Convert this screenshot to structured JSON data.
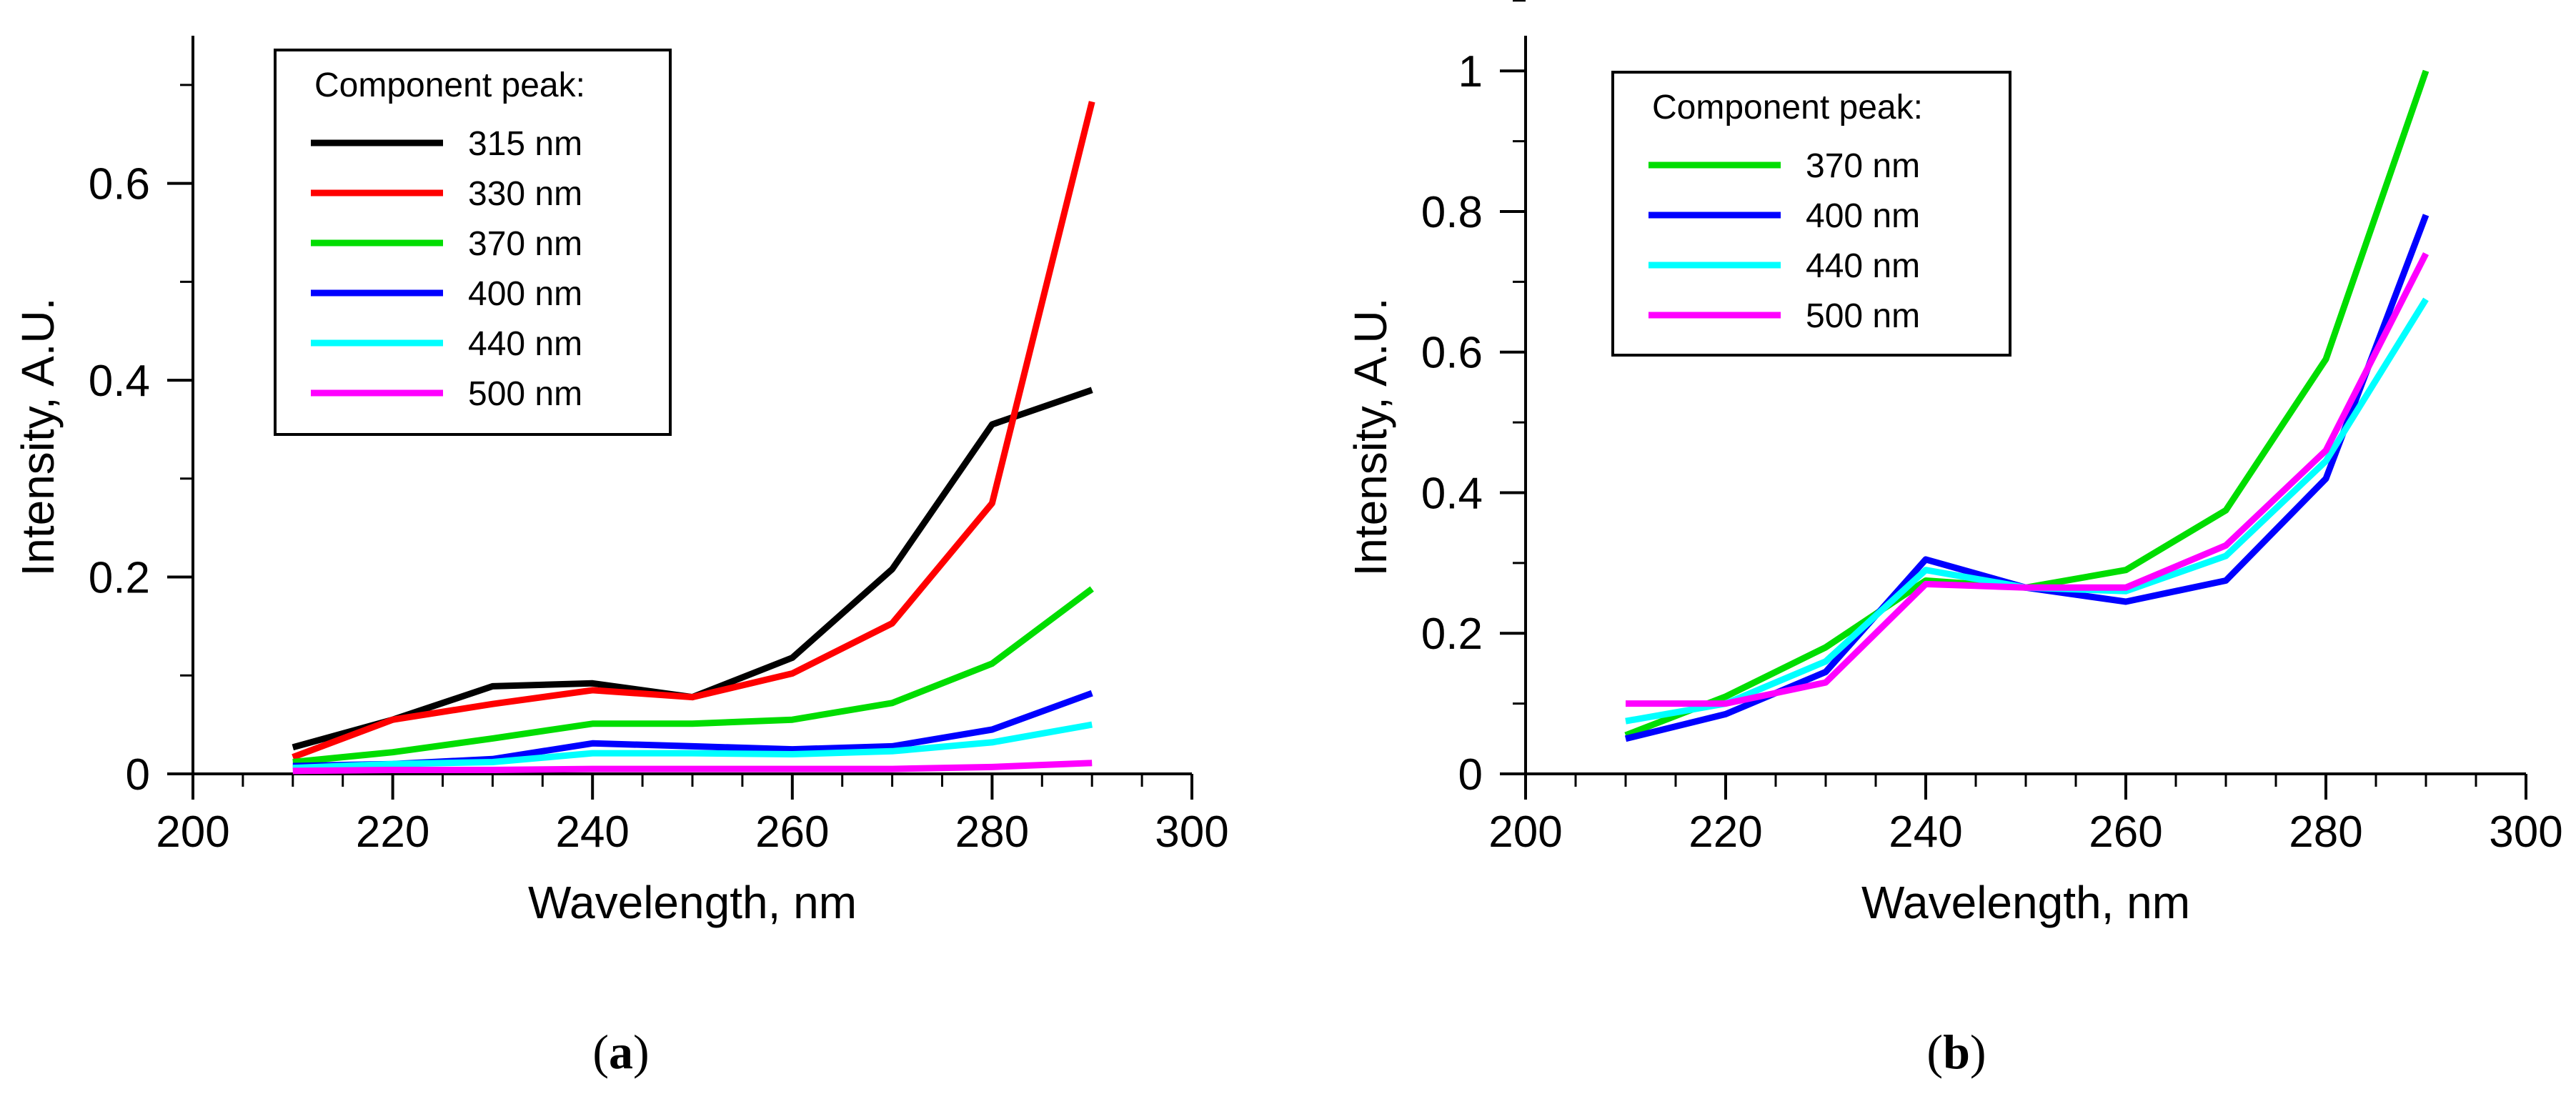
{
  "chart_data": [
    {
      "panel": "a",
      "panel_label": "(a)",
      "panel_label_letter": "a",
      "type": "line",
      "xlabel": "Wavelength, nm",
      "ylabel": "Intensity, A.U.",
      "xlim": [
        200,
        300
      ],
      "ylim": [
        0,
        0.75
      ],
      "xticks": [
        200,
        220,
        240,
        260,
        280,
        300
      ],
      "xtick_labels": [
        "200",
        "220",
        "240",
        "260",
        "280",
        "300"
      ],
      "yticks": [
        0,
        0.2,
        0.4,
        0.6
      ],
      "ytick_labels": [
        "0",
        "0.2",
        "0.4",
        "0.6"
      ],
      "x_minor_step": 5,
      "y_minor_step": 0.1,
      "grid": false,
      "legend_title": "Component peak:",
      "legend_position": "top-left",
      "x": [
        210,
        220,
        230,
        240,
        250,
        260,
        270,
        280,
        290
      ],
      "series": [
        {
          "name": "315 nm",
          "color": "#000000",
          "values": [
            0.027,
            0.055,
            0.089,
            0.092,
            0.078,
            0.118,
            0.208,
            0.355,
            0.39
          ]
        },
        {
          "name": "330 nm",
          "color": "#ff0000",
          "values": [
            0.017,
            0.055,
            0.071,
            0.085,
            0.078,
            0.102,
            0.153,
            0.275,
            0.683
          ]
        },
        {
          "name": "370 nm",
          "color": "#00dd00",
          "values": [
            0.012,
            0.022,
            0.036,
            0.051,
            0.051,
            0.055,
            0.072,
            0.112,
            0.188
          ]
        },
        {
          "name": "400 nm",
          "color": "#0000ff",
          "values": [
            0.008,
            0.01,
            0.015,
            0.031,
            0.028,
            0.025,
            0.028,
            0.045,
            0.082
          ]
        },
        {
          "name": "440 nm",
          "color": "#00ffff",
          "values": [
            0.006,
            0.01,
            0.012,
            0.021,
            0.021,
            0.02,
            0.023,
            0.032,
            0.05
          ]
        },
        {
          "name": "500 nm",
          "color": "#ff00ff",
          "values": [
            0.003,
            0.004,
            0.004,
            0.005,
            0.005,
            0.005,
            0.005,
            0.007,
            0.011
          ]
        }
      ]
    },
    {
      "panel": "b",
      "panel_label": "(b)",
      "panel_label_letter": "b",
      "type": "line",
      "xlabel": "Wavelength, nm",
      "ylabel": "Intensity, A.U.",
      "xlim": [
        200,
        300
      ],
      "ylim": [
        0,
        1.05
      ],
      "xticks": [
        200,
        220,
        240,
        260,
        280,
        300
      ],
      "xtick_labels": [
        "200",
        "220",
        "240",
        "260",
        "280",
        "300"
      ],
      "yticks": [
        0,
        0.2,
        0.4,
        0.6,
        0.8,
        1.0
      ],
      "ytick_labels": [
        "0",
        "0.2",
        "0.4",
        "0.6",
        "0.8",
        "1"
      ],
      "x_minor_step": 5,
      "y_minor_step": 0.1,
      "grid": false,
      "legend_title": "Component peak:",
      "legend_position": "top-left",
      "x": [
        210,
        220,
        230,
        240,
        250,
        260,
        270,
        280,
        290
      ],
      "series": [
        {
          "name": "370 nm",
          "color": "#00dd00",
          "values": [
            0.055,
            0.11,
            0.18,
            0.275,
            0.265,
            0.29,
            0.375,
            0.59,
            1.0
          ]
        },
        {
          "name": "400 nm",
          "color": "#0000ff",
          "values": [
            0.05,
            0.085,
            0.145,
            0.305,
            0.265,
            0.245,
            0.275,
            0.42,
            0.795
          ]
        },
        {
          "name": "440 nm",
          "color": "#00ffff",
          "values": [
            0.075,
            0.1,
            0.16,
            0.29,
            0.265,
            0.26,
            0.31,
            0.445,
            0.675
          ]
        },
        {
          "name": "500 nm",
          "color": "#ff00ff",
          "values": [
            0.1,
            0.1,
            0.13,
            0.27,
            0.265,
            0.265,
            0.325,
            0.46,
            0.74
          ]
        }
      ]
    }
  ]
}
